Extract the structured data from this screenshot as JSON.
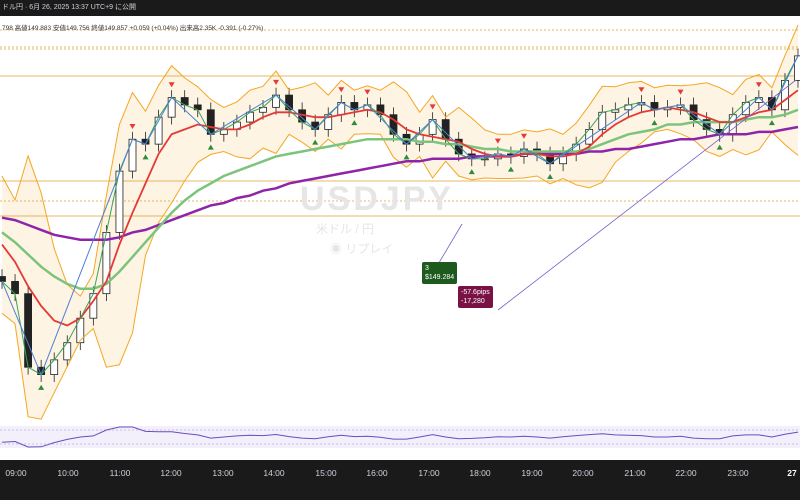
{
  "header": {
    "title": "ドル円 · 6月 26, 2025 13:37 UTC+9 に公開",
    "ohlc": "798  高値149.883  安値149.756  終値149.857  +0.059 (+0.04%)  出来高2.35K  -0.391 (-0.27%)"
  },
  "watermark": {
    "symbol": "USDJPY",
    "name": "米ドル / 円",
    "replay": "◉ リプレイ"
  },
  "annotations": {
    "count_label": "3",
    "price_label": "$149.284",
    "pips_label": "-57.6pips",
    "amount_label": "-17,280"
  },
  "time_axis": {
    "ticks": [
      "09:00",
      "10:00",
      "11:00",
      "12:00",
      "13:00",
      "14:00",
      "15:00",
      "16:00",
      "17:00",
      "18:00",
      "19:00",
      "20:00",
      "21:00",
      "22:00",
      "23:00",
      "27"
    ]
  },
  "colors": {
    "bb_line": "#f5a623",
    "bb_fill": "#fdf4e3",
    "ma_red": "#e53935",
    "ma_green": "#7cc47c",
    "ma_purple": "#8e24aa",
    "zigzag": "#4a7fd6",
    "fast_ma": "#3aa35a",
    "up_marker": "#2e8b3a",
    "down_marker": "#e53935",
    "level_line": "#e0a030"
  },
  "chart_data": {
    "type": "line",
    "title": "",
    "xlabel": "",
    "ylabel": "",
    "y_range": [
      148.6,
      150.15
    ],
    "x": [
      "08:45",
      "09:00",
      "09:15",
      "09:30",
      "09:45",
      "10:00",
      "10:15",
      "10:30",
      "10:45",
      "11:00",
      "11:15",
      "11:30",
      "11:45",
      "12:00",
      "12:15",
      "12:30",
      "12:45",
      "13:00",
      "13:15",
      "13:30",
      "13:45",
      "14:00",
      "14:15",
      "14:30",
      "14:45",
      "15:00",
      "15:15",
      "15:30",
      "15:45",
      "16:00",
      "16:15",
      "16:30",
      "16:45",
      "17:00",
      "17:15",
      "17:30",
      "17:45",
      "18:00",
      "18:15",
      "18:30",
      "18:45",
      "19:00",
      "19:15",
      "19:30",
      "19:45",
      "20:00",
      "20:15",
      "20:30",
      "20:45",
      "21:00",
      "21:15",
      "21:30",
      "21:45",
      "22:00",
      "22:15",
      "22:30",
      "22:45",
      "23:00",
      "23:15",
      "23:30",
      "23:45",
      "00:00"
    ],
    "series": [
      {
        "values": [
          149.1,
          149.05,
          148.75,
          148.72,
          148.78,
          148.85,
          148.95,
          149.05,
          149.3,
          149.55,
          149.68,
          149.66,
          149.77,
          149.85,
          149.82,
          149.8,
          149.7,
          149.72,
          149.75,
          149.79,
          149.81,
          149.86,
          149.8,
          149.75,
          149.72,
          149.78,
          149.83,
          149.8,
          149.82,
          149.78,
          149.7,
          149.66,
          149.7,
          149.76,
          149.68,
          149.62,
          149.6,
          149.6,
          149.62,
          149.61,
          149.64,
          149.62,
          149.58,
          149.62,
          149.66,
          149.72,
          149.79,
          149.8,
          149.82,
          149.83,
          149.8,
          149.81,
          149.82,
          149.76,
          149.72,
          149.7,
          149.78,
          149.83,
          149.85,
          149.8,
          149.92,
          150.02
        ]
      },
      {
        "values": [
          149.25,
          149.18,
          149.08,
          149.0,
          148.94,
          148.92,
          148.95,
          149.02,
          149.1,
          149.25,
          149.38,
          149.5,
          149.62,
          149.7,
          149.72,
          149.74,
          149.73,
          149.72,
          149.72,
          149.74,
          149.77,
          149.79,
          149.79,
          149.78,
          149.77,
          149.77,
          149.78,
          149.79,
          149.8,
          149.79,
          149.76,
          149.72,
          149.7,
          149.69,
          149.68,
          149.67,
          149.64,
          149.62,
          149.61,
          149.61,
          149.62,
          149.62,
          149.61,
          149.61,
          149.62,
          149.65,
          149.7,
          149.74,
          149.77,
          149.79,
          149.8,
          149.81,
          149.8,
          149.79,
          149.77,
          149.75,
          149.75,
          149.77,
          149.79,
          149.8,
          149.84,
          149.88
        ]
      },
      {
        "values": [
          149.3,
          149.26,
          149.21,
          149.16,
          149.12,
          149.09,
          149.07,
          149.07,
          149.09,
          149.14,
          149.2,
          149.26,
          149.32,
          149.38,
          149.43,
          149.47,
          149.5,
          149.53,
          149.55,
          149.57,
          149.59,
          149.61,
          149.62,
          149.63,
          149.64,
          149.65,
          149.66,
          149.67,
          149.68,
          149.68,
          149.68,
          149.68,
          149.67,
          149.67,
          149.66,
          149.66,
          149.65,
          149.64,
          149.64,
          149.63,
          149.63,
          149.63,
          149.63,
          149.63,
          149.63,
          149.64,
          149.66,
          149.68,
          149.7,
          149.71,
          149.72,
          149.74,
          149.74,
          149.75,
          149.75,
          149.75,
          149.75,
          149.76,
          149.77,
          149.77,
          149.78,
          149.8
        ]
      },
      {
        "values": [
          149.36,
          149.35,
          149.33,
          149.31,
          149.29,
          149.28,
          149.27,
          149.27,
          149.27,
          149.28,
          149.3,
          149.31,
          149.33,
          149.35,
          149.37,
          149.39,
          149.41,
          149.42,
          149.44,
          149.45,
          149.47,
          149.48,
          149.5,
          149.51,
          149.52,
          149.53,
          149.54,
          149.55,
          149.56,
          149.57,
          149.58,
          149.59,
          149.59,
          149.6,
          149.6,
          149.6,
          149.61,
          149.61,
          149.61,
          149.61,
          149.62,
          149.62,
          149.62,
          149.62,
          149.62,
          149.63,
          149.63,
          149.64,
          149.64,
          149.65,
          149.66,
          149.67,
          149.68,
          149.68,
          149.69,
          149.7,
          149.7,
          149.7,
          149.71,
          149.71,
          149.72,
          149.73
        ]
      }
    ]
  }
}
